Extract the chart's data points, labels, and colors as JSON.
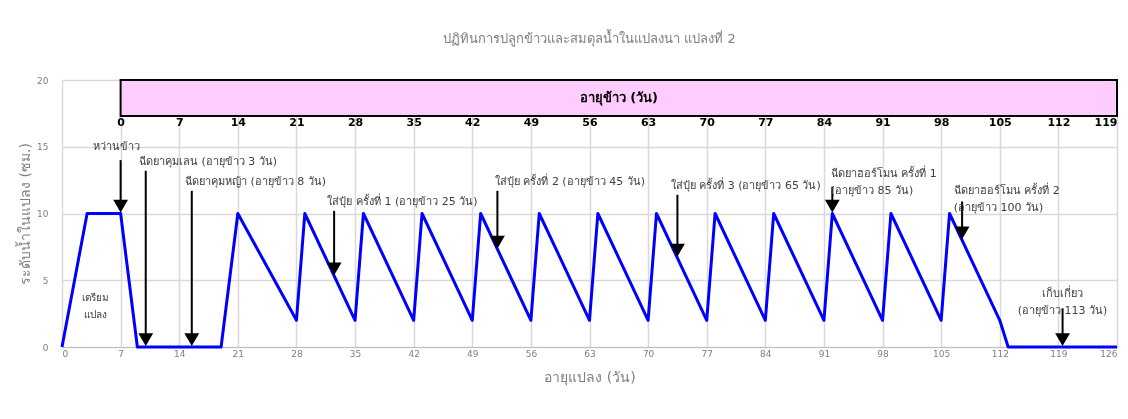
{
  "chart_data": {
    "type": "line",
    "title": "ปฏิทินการปลูกข้าวและสมดุลน้ำในแปลงนา แปลงที่ 2",
    "xlabel": "อายุแปลง (วัน)",
    "ylabel": "ระดับน้ำในแปลง (ซม.)",
    "x2label": "อายุข้าว (วัน)",
    "x": [
      0,
      3,
      7,
      9,
      19,
      21,
      28,
      29,
      35,
      36,
      42,
      43,
      49,
      50,
      56,
      57,
      63,
      64,
      70,
      71,
      77,
      78,
      84,
      85,
      91,
      92,
      98,
      99,
      105,
      106,
      112,
      113,
      126
    ],
    "series": [
      {
        "color": "#0000ff",
        "values": [
          0,
          10,
          10,
          0,
          0,
          10,
          2,
          10,
          2,
          10,
          2,
          10,
          2,
          10,
          2,
          10,
          2,
          10,
          2,
          10,
          2,
          10,
          2,
          10,
          2,
          10,
          2,
          10,
          2,
          10,
          2,
          0,
          0
        ]
      }
    ],
    "xlim": [
      0,
      126
    ],
    "xticks": [
      0,
      7,
      14,
      21,
      28,
      35,
      42,
      49,
      56,
      63,
      70,
      77,
      84,
      91,
      98,
      105,
      112,
      119,
      126
    ],
    "x2lim": [
      -7,
      119
    ],
    "x2ticks": [
      0,
      7,
      14,
      21,
      28,
      35,
      42,
      49,
      56,
      63,
      70,
      77,
      84,
      91,
      98,
      105,
      112,
      119
    ],
    "ylim": [
      0,
      20
    ],
    "yticks": [
      0,
      5,
      10,
      15,
      20
    ],
    "grid": true,
    "marker": "none",
    "line_style": "solid",
    "annotations": [
      {
        "text": "หว่านข้าว",
        "x": 7,
        "y": 10
      },
      {
        "text": "ฉีดยาคุมเลน (อายุข้าว 3 วัน)",
        "x": 10,
        "y": 0
      },
      {
        "text": "ฉีดยาคุมหญ้า (อายุข้าว 8 วัน)",
        "x": 15.5,
        "y": 0
      },
      {
        "text": "ใส่ปุ๋ย ครั้งที่ 1 (อายุข้าว 25 วัน)",
        "x": 32.5,
        "y": 5.3
      },
      {
        "text": "ใส่ปุ๋ย ครั้งที่ 2 (อายุข้าว 45 วัน)",
        "x": 52,
        "y": 7.3
      },
      {
        "text": "ใส่ปุ๋ย ครั้งที่ 3 (อายุข้าว 65 วัน)",
        "x": 73.5,
        "y": 6.7
      },
      {
        "text": "ฉีดยาฮอร์โมน ครั้งที่ 1\n(อายุข้าว 85 วัน)",
        "x": 92,
        "y": 10
      },
      {
        "text": "ฉีดยาฮอร์โมน ครั้งที่ 2\n(อายุข้าว 100 วัน)",
        "x": 107.5,
        "y": 8
      },
      {
        "text": "เก็บเกี่ยว\n(อายุข้าว 113 วัน)",
        "x": 119.5,
        "y": 0
      },
      "เตรียม\nแปลง"
    ]
  }
}
